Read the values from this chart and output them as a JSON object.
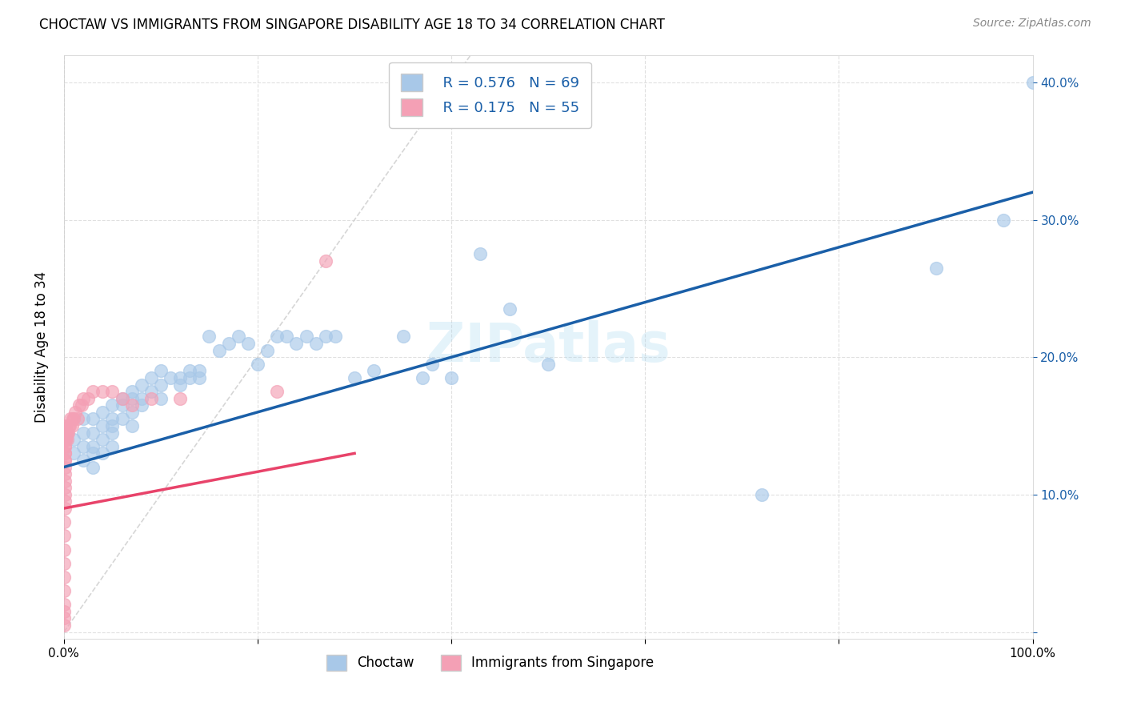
{
  "title": "CHOCTAW VS IMMIGRANTS FROM SINGAPORE DISABILITY AGE 18 TO 34 CORRELATION CHART",
  "source": "Source: ZipAtlas.com",
  "ylabel": "Disability Age 18 to 34",
  "xlim": [
    0.0,
    1.0
  ],
  "ylim": [
    -0.005,
    0.42
  ],
  "choctaw_color": "#a8c8e8",
  "singapore_color": "#f4a0b5",
  "trend_blue": "#1a5fa8",
  "trend_pink": "#e8436a",
  "diag_color": "#cccccc",
  "legend_R_blue": "R = 0.576",
  "legend_N_blue": "N = 69",
  "legend_R_pink": "R = 0.175",
  "legend_N_pink": "N = 55",
  "watermark": "ZIPatlas",
  "choctaw_x": [
    0.01,
    0.01,
    0.02,
    0.02,
    0.02,
    0.02,
    0.03,
    0.03,
    0.03,
    0.03,
    0.03,
    0.04,
    0.04,
    0.04,
    0.04,
    0.05,
    0.05,
    0.05,
    0.05,
    0.05,
    0.06,
    0.06,
    0.06,
    0.07,
    0.07,
    0.07,
    0.07,
    0.08,
    0.08,
    0.08,
    0.09,
    0.09,
    0.1,
    0.1,
    0.1,
    0.11,
    0.12,
    0.12,
    0.13,
    0.13,
    0.14,
    0.14,
    0.15,
    0.16,
    0.17,
    0.18,
    0.19,
    0.2,
    0.21,
    0.22,
    0.23,
    0.24,
    0.25,
    0.26,
    0.27,
    0.28,
    0.3,
    0.32,
    0.35,
    0.37,
    0.38,
    0.4,
    0.43,
    0.46,
    0.5,
    0.72,
    0.9,
    0.97,
    1.0
  ],
  "choctaw_y": [
    0.14,
    0.13,
    0.155,
    0.145,
    0.135,
    0.125,
    0.155,
    0.145,
    0.135,
    0.13,
    0.12,
    0.16,
    0.15,
    0.14,
    0.13,
    0.165,
    0.155,
    0.15,
    0.145,
    0.135,
    0.17,
    0.165,
    0.155,
    0.175,
    0.17,
    0.16,
    0.15,
    0.18,
    0.17,
    0.165,
    0.185,
    0.175,
    0.19,
    0.18,
    0.17,
    0.185,
    0.185,
    0.18,
    0.19,
    0.185,
    0.19,
    0.185,
    0.215,
    0.205,
    0.21,
    0.215,
    0.21,
    0.195,
    0.205,
    0.215,
    0.215,
    0.21,
    0.215,
    0.21,
    0.215,
    0.215,
    0.185,
    0.19,
    0.215,
    0.185,
    0.195,
    0.185,
    0.275,
    0.235,
    0.195,
    0.1,
    0.265,
    0.3,
    0.4
  ],
  "singapore_x": [
    0.0005,
    0.0005,
    0.0005,
    0.0005,
    0.0005,
    0.0005,
    0.0005,
    0.0005,
    0.0005,
    0.0005,
    0.0008,
    0.0008,
    0.0008,
    0.0008,
    0.0008,
    0.0008,
    0.001,
    0.001,
    0.001,
    0.001,
    0.001,
    0.001,
    0.001,
    0.001,
    0.001,
    0.001,
    0.0015,
    0.0015,
    0.002,
    0.002,
    0.002,
    0.003,
    0.003,
    0.004,
    0.005,
    0.006,
    0.007,
    0.008,
    0.009,
    0.01,
    0.012,
    0.014,
    0.016,
    0.018,
    0.02,
    0.025,
    0.03,
    0.04,
    0.05,
    0.06,
    0.07,
    0.09,
    0.12,
    0.22,
    0.27
  ],
  "singapore_y": [
    0.005,
    0.01,
    0.015,
    0.02,
    0.03,
    0.04,
    0.05,
    0.06,
    0.07,
    0.08,
    0.09,
    0.095,
    0.1,
    0.105,
    0.11,
    0.115,
    0.12,
    0.125,
    0.125,
    0.13,
    0.135,
    0.14,
    0.14,
    0.14,
    0.135,
    0.13,
    0.14,
    0.145,
    0.145,
    0.15,
    0.14,
    0.14,
    0.145,
    0.145,
    0.15,
    0.15,
    0.155,
    0.15,
    0.155,
    0.155,
    0.16,
    0.155,
    0.165,
    0.165,
    0.17,
    0.17,
    0.175,
    0.175,
    0.175,
    0.17,
    0.165,
    0.17,
    0.17,
    0.175,
    0.27
  ],
  "background_color": "#ffffff",
  "grid_color": "#e0e0e0"
}
